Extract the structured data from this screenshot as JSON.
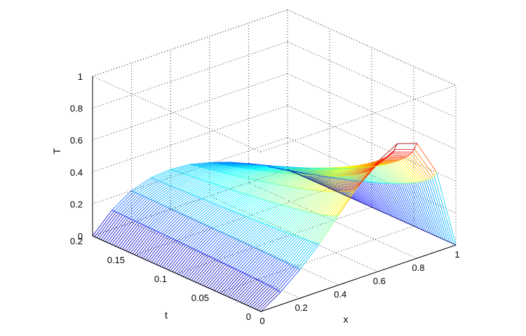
{
  "chart_data": {
    "type": "surface3d",
    "title": "",
    "xlabel": "x",
    "ylabel": "t",
    "zlabel": "T",
    "xlim": [
      0,
      1
    ],
    "ylim": [
      0,
      0.2
    ],
    "zlim": [
      0,
      1
    ],
    "xticks": [
      "0",
      "0.2",
      "0.4",
      "0.6",
      "0.8",
      "1"
    ],
    "yticks": [
      "0",
      "0.05",
      "0.1",
      "0.15",
      "0.2"
    ],
    "zticks": [
      "0",
      "0.2",
      "0.4",
      "0.6",
      "0.8",
      "1"
    ],
    "grid": true,
    "box": "dotted",
    "colormap": "jet",
    "surface": {
      "t_values": [
        0,
        0.2
      ],
      "x_values": [
        0,
        0.1,
        0.2,
        0.3,
        0.4,
        0.5,
        0.6,
        0.7,
        0.8,
        0.9,
        1
      ],
      "T_at_t_0": [
        0,
        0.08,
        0.18,
        0.3,
        0.44,
        0.58,
        0.69,
        0.76,
        0.72,
        0.5,
        0
      ],
      "T_at_t_0_2": [
        0,
        0.12,
        0.2,
        0.24,
        0.25,
        0.24,
        0.21,
        0.17,
        0.12,
        0.06,
        0
      ]
    }
  }
}
